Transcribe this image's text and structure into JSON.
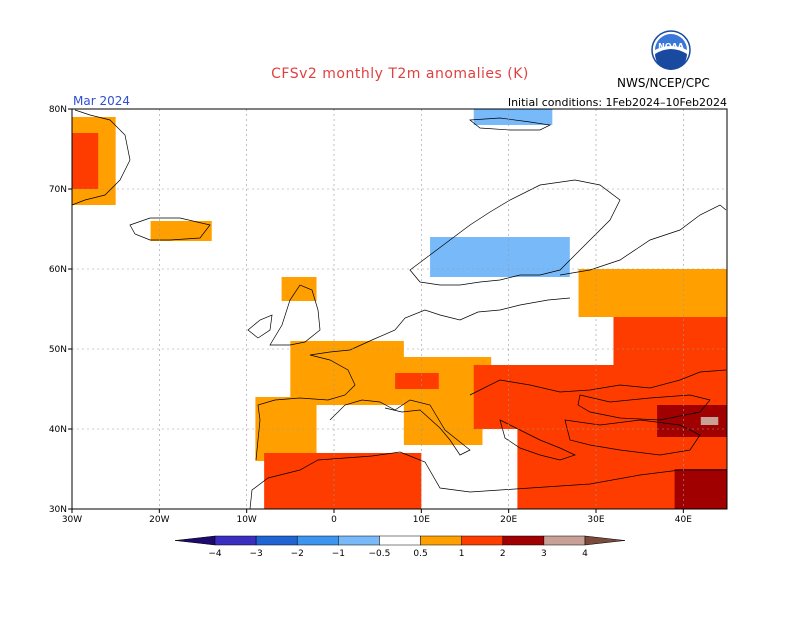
{
  "header": {
    "title": "CFSv2 monthly T2m anomalies (K)",
    "month": "Mar 2024",
    "initial_conditions": "Initial conditions: 1Feb2024–10Feb2024",
    "org": "NWS/NCEP/CPC",
    "logo_text": "NOAA"
  },
  "map": {
    "lon_range": [
      -30,
      45
    ],
    "lat_range": [
      30,
      80
    ],
    "lon_ticks": [
      {
        "value": -30,
        "label": "30W"
      },
      {
        "value": -20,
        "label": "20W"
      },
      {
        "value": -10,
        "label": "10W"
      },
      {
        "value": 0,
        "label": "0"
      },
      {
        "value": 10,
        "label": "10E"
      },
      {
        "value": 20,
        "label": "20E"
      },
      {
        "value": 30,
        "label": "30E"
      },
      {
        "value": 40,
        "label": "40E"
      }
    ],
    "lat_ticks": [
      {
        "value": 30,
        "label": "30N"
      },
      {
        "value": 40,
        "label": "40N"
      },
      {
        "value": 50,
        "label": "50N"
      },
      {
        "value": 60,
        "label": "60N"
      },
      {
        "value": 70,
        "label": "70N"
      },
      {
        "value": 80,
        "label": "80N"
      }
    ],
    "grid": true
  },
  "colorbar": {
    "labels": [
      "−4",
      "−3",
      "−2",
      "−1",
      "−0.5",
      "0.5",
      "1",
      "2",
      "3",
      "4"
    ],
    "colors": {
      "lt_-4": "#1e0a6e",
      "-4_-3": "#3a2ec0",
      "-3_-2": "#1f64d2",
      "-2_-1": "#3c96f0",
      "-1_-0.5": "#78b9fa",
      "-0.5_0.5": "#ffffff",
      "0.5_1": "#ffa000",
      "1_2": "#ff3c00",
      "2_3": "#a00000",
      "3_4": "#c8a096",
      "gt_4": "#7a4a3a"
    }
  },
  "anomaly_regions": [
    {
      "category": "0.5_1",
      "lon": [
        -30,
        -25
      ],
      "lat": [
        68,
        79
      ]
    },
    {
      "category": "1_2",
      "lon": [
        -30,
        -27
      ],
      "lat": [
        70,
        77
      ]
    },
    {
      "category": "0.5_1",
      "lon": [
        -21,
        -14
      ],
      "lat": [
        63.5,
        66
      ]
    },
    {
      "category": "0.5_1",
      "lon": [
        -6,
        -2
      ],
      "lat": [
        56,
        59
      ]
    },
    {
      "category": "0.5_1",
      "lon": [
        -9,
        -2
      ],
      "lat": [
        36,
        44
      ]
    },
    {
      "category": "0.5_1",
      "lon": [
        -5,
        8
      ],
      "lat": [
        43,
        51
      ]
    },
    {
      "category": "0.5_1",
      "lon": [
        6,
        18
      ],
      "lat": [
        44,
        49
      ]
    },
    {
      "category": "0.5_1",
      "lon": [
        8,
        17
      ],
      "lat": [
        38,
        46
      ]
    },
    {
      "category": "1_2",
      "lon": [
        7,
        12
      ],
      "lat": [
        45,
        47
      ]
    },
    {
      "category": "1_2",
      "lon": [
        16,
        45
      ],
      "lat": [
        40,
        48
      ]
    },
    {
      "category": "1_2",
      "lon": [
        32,
        45
      ],
      "lat": [
        48,
        58
      ]
    },
    {
      "category": "0.5_1",
      "lon": [
        28,
        45
      ],
      "lat": [
        54,
        60
      ]
    },
    {
      "category": "1_2",
      "lon": [
        -8,
        10
      ],
      "lat": [
        30,
        37
      ]
    },
    {
      "category": "1_2",
      "lon": [
        21,
        45
      ],
      "lat": [
        30,
        40
      ]
    },
    {
      "category": "2_3",
      "lon": [
        37,
        45
      ],
      "lat": [
        39,
        43
      ]
    },
    {
      "category": "3_4",
      "lon": [
        42,
        44
      ],
      "lat": [
        40.5,
        41.5
      ]
    },
    {
      "category": "2_3",
      "lon": [
        39,
        45
      ],
      "lat": [
        30,
        35
      ]
    },
    {
      "category": "-1_-0.5",
      "lon": [
        11,
        27
      ],
      "lat": [
        59,
        64
      ]
    },
    {
      "category": "-1_-0.5",
      "lon": [
        16,
        25
      ],
      "lat": [
        78,
        80
      ]
    }
  ]
}
